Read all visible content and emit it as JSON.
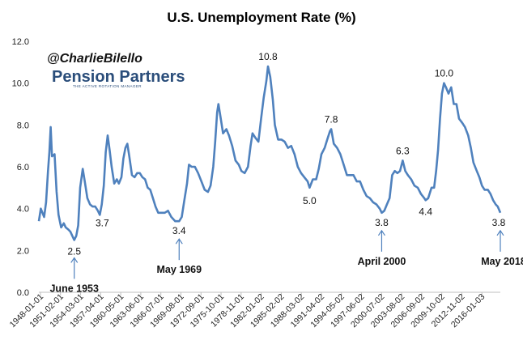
{
  "chart_data": {
    "type": "line",
    "title": "U.S. Unemployment Rate (%)",
    "xlabel": "",
    "ylabel": "",
    "ylim": [
      0,
      12
    ],
    "yticks": [
      "0.0",
      "2.0",
      "4.0",
      "6.0",
      "8.0",
      "10.0",
      "12.0"
    ],
    "x_start": 1948.0,
    "x_end": 2018.4,
    "xtick_labels": [
      "1948-01-01",
      "1951-02-01",
      "1954-03-01",
      "1957-04-01",
      "1960-05-01",
      "1963-06-01",
      "1966-07-01",
      "1969-08-01",
      "1972-09-01",
      "1975-10-01",
      "1978-11-01",
      "1982-01-02",
      "1985-02-02",
      "1988-03-02",
      "1991-04-02",
      "1994-05-02",
      "1997-06-02",
      "2000-07-02",
      "2003-08-02",
      "2006-09-02",
      "2009-10-02",
      "2012-11-02",
      "2016-01-03"
    ],
    "series": [
      {
        "name": "U.S. Unemployment Rate",
        "color": "#4f81bd",
        "points": [
          [
            1948.0,
            3.4
          ],
          [
            1948.3,
            4.0
          ],
          [
            1948.8,
            3.6
          ],
          [
            1949.1,
            4.3
          ],
          [
            1949.4,
            5.8
          ],
          [
            1949.6,
            6.7
          ],
          [
            1949.8,
            7.9
          ],
          [
            1950.0,
            6.5
          ],
          [
            1950.4,
            6.6
          ],
          [
            1950.7,
            4.8
          ],
          [
            1951.0,
            3.7
          ],
          [
            1951.4,
            3.1
          ],
          [
            1951.8,
            3.3
          ],
          [
            1952.1,
            3.1
          ],
          [
            1952.5,
            3.0
          ],
          [
            1952.8,
            2.9
          ],
          [
            1953.1,
            2.7
          ],
          [
            1953.4,
            2.5
          ],
          [
            1953.7,
            2.7
          ],
          [
            1954.0,
            3.2
          ],
          [
            1954.3,
            5.0
          ],
          [
            1954.7,
            5.9
          ],
          [
            1955.0,
            5.3
          ],
          [
            1955.4,
            4.5
          ],
          [
            1955.8,
            4.2
          ],
          [
            1956.2,
            4.1
          ],
          [
            1956.6,
            4.1
          ],
          [
            1957.0,
            3.9
          ],
          [
            1957.3,
            3.7
          ],
          [
            1957.6,
            4.2
          ],
          [
            1957.9,
            5.1
          ],
          [
            1958.2,
            6.7
          ],
          [
            1958.5,
            7.5
          ],
          [
            1958.8,
            6.8
          ],
          [
            1959.1,
            6.0
          ],
          [
            1959.5,
            5.2
          ],
          [
            1959.9,
            5.4
          ],
          [
            1960.2,
            5.2
          ],
          [
            1960.6,
            5.5
          ],
          [
            1960.9,
            6.4
          ],
          [
            1961.2,
            6.9
          ],
          [
            1961.5,
            7.1
          ],
          [
            1961.8,
            6.5
          ],
          [
            1962.2,
            5.6
          ],
          [
            1962.6,
            5.5
          ],
          [
            1963.0,
            5.7
          ],
          [
            1963.4,
            5.7
          ],
          [
            1963.8,
            5.5
          ],
          [
            1964.2,
            5.4
          ],
          [
            1964.6,
            5.0
          ],
          [
            1965.0,
            4.9
          ],
          [
            1965.4,
            4.5
          ],
          [
            1965.8,
            4.1
          ],
          [
            1966.2,
            3.8
          ],
          [
            1966.7,
            3.8
          ],
          [
            1967.2,
            3.8
          ],
          [
            1967.7,
            3.9
          ],
          [
            1968.2,
            3.6
          ],
          [
            1968.8,
            3.4
          ],
          [
            1969.4,
            3.4
          ],
          [
            1969.8,
            3.6
          ],
          [
            1970.2,
            4.4
          ],
          [
            1970.6,
            5.2
          ],
          [
            1970.9,
            6.1
          ],
          [
            1971.3,
            6.0
          ],
          [
            1971.8,
            6.0
          ],
          [
            1972.3,
            5.7
          ],
          [
            1972.8,
            5.3
          ],
          [
            1973.3,
            4.9
          ],
          [
            1973.8,
            4.8
          ],
          [
            1974.2,
            5.1
          ],
          [
            1974.6,
            6.0
          ],
          [
            1974.9,
            7.2
          ],
          [
            1975.2,
            8.6
          ],
          [
            1975.4,
            9.0
          ],
          [
            1975.7,
            8.4
          ],
          [
            1976.1,
            7.6
          ],
          [
            1976.6,
            7.8
          ],
          [
            1977.0,
            7.5
          ],
          [
            1977.5,
            7.0
          ],
          [
            1978.0,
            6.3
          ],
          [
            1978.5,
            6.1
          ],
          [
            1978.9,
            5.8
          ],
          [
            1979.4,
            5.7
          ],
          [
            1979.9,
            6.0
          ],
          [
            1980.3,
            7.0
          ],
          [
            1980.6,
            7.6
          ],
          [
            1981.0,
            7.4
          ],
          [
            1981.5,
            7.2
          ],
          [
            1981.9,
            8.3
          ],
          [
            1982.3,
            9.3
          ],
          [
            1982.7,
            10.1
          ],
          [
            1982.95,
            10.8
          ],
          [
            1983.3,
            10.3
          ],
          [
            1983.7,
            9.2
          ],
          [
            1984.0,
            8.0
          ],
          [
            1984.5,
            7.3
          ],
          [
            1985.0,
            7.3
          ],
          [
            1985.5,
            7.2
          ],
          [
            1986.0,
            6.9
          ],
          [
            1986.5,
            7.0
          ],
          [
            1987.0,
            6.6
          ],
          [
            1987.5,
            6.0
          ],
          [
            1988.0,
            5.7
          ],
          [
            1988.5,
            5.5
          ],
          [
            1989.0,
            5.3
          ],
          [
            1989.3,
            5.0
          ],
          [
            1989.8,
            5.4
          ],
          [
            1990.3,
            5.4
          ],
          [
            1990.7,
            5.9
          ],
          [
            1991.1,
            6.6
          ],
          [
            1991.6,
            6.9
          ],
          [
            1992.0,
            7.3
          ],
          [
            1992.4,
            7.7
          ],
          [
            1992.6,
            7.8
          ],
          [
            1993.0,
            7.1
          ],
          [
            1993.5,
            6.9
          ],
          [
            1994.0,
            6.6
          ],
          [
            1994.5,
            6.1
          ],
          [
            1995.0,
            5.6
          ],
          [
            1995.5,
            5.6
          ],
          [
            1996.0,
            5.6
          ],
          [
            1996.5,
            5.3
          ],
          [
            1997.0,
            5.3
          ],
          [
            1997.5,
            4.9
          ],
          [
            1998.0,
            4.6
          ],
          [
            1998.5,
            4.5
          ],
          [
            1999.0,
            4.3
          ],
          [
            1999.5,
            4.2
          ],
          [
            2000.0,
            4.0
          ],
          [
            2000.3,
            3.8
          ],
          [
            2000.7,
            3.9
          ],
          [
            2001.1,
            4.2
          ],
          [
            2001.5,
            4.5
          ],
          [
            2001.9,
            5.6
          ],
          [
            2002.3,
            5.8
          ],
          [
            2002.7,
            5.7
          ],
          [
            2003.1,
            5.8
          ],
          [
            2003.5,
            6.3
          ],
          [
            2003.9,
            5.8
          ],
          [
            2004.3,
            5.6
          ],
          [
            2004.8,
            5.4
          ],
          [
            2005.3,
            5.1
          ],
          [
            2005.8,
            5.0
          ],
          [
            2006.3,
            4.7
          ],
          [
            2006.8,
            4.5
          ],
          [
            2007.0,
            4.4
          ],
          [
            2007.4,
            4.5
          ],
          [
            2007.9,
            5.0
          ],
          [
            2008.3,
            5.0
          ],
          [
            2008.6,
            5.8
          ],
          [
            2008.9,
            6.8
          ],
          [
            2009.2,
            8.3
          ],
          [
            2009.5,
            9.5
          ],
          [
            2009.8,
            10.0
          ],
          [
            2010.1,
            9.8
          ],
          [
            2010.5,
            9.5
          ],
          [
            2010.9,
            9.8
          ],
          [
            2011.3,
            9.0
          ],
          [
            2011.7,
            9.0
          ],
          [
            2012.1,
            8.3
          ],
          [
            2012.6,
            8.1
          ],
          [
            2013.0,
            7.9
          ],
          [
            2013.5,
            7.5
          ],
          [
            2013.9,
            6.9
          ],
          [
            2014.3,
            6.2
          ],
          [
            2014.8,
            5.8
          ],
          [
            2015.2,
            5.5
          ],
          [
            2015.6,
            5.1
          ],
          [
            2016.0,
            4.9
          ],
          [
            2016.5,
            4.9
          ],
          [
            2016.9,
            4.7
          ],
          [
            2017.3,
            4.4
          ],
          [
            2017.7,
            4.2
          ],
          [
            2018.0,
            4.1
          ],
          [
            2018.4,
            3.8
          ]
        ]
      }
    ],
    "data_labels": [
      {
        "x": 1953.4,
        "y": 2.5,
        "text": "2.5"
      },
      {
        "x": 1957.3,
        "y": 3.7,
        "text": "3.7"
      },
      {
        "x": 1969.4,
        "y": 3.4,
        "text": "3.4"
      },
      {
        "x": 1982.95,
        "y": 10.8,
        "text": "10.8"
      },
      {
        "x": 1989.3,
        "y": 5.0,
        "text": "5.0"
      },
      {
        "x": 1992.6,
        "y": 7.8,
        "text": "7.8"
      },
      {
        "x": 2000.3,
        "y": 3.8,
        "text": "3.8"
      },
      {
        "x": 2003.5,
        "y": 6.3,
        "text": "6.3"
      },
      {
        "x": 2007.0,
        "y": 4.4,
        "text": "4.4"
      },
      {
        "x": 2009.8,
        "y": 10.0,
        "text": "10.0"
      },
      {
        "x": 2018.4,
        "y": 3.8,
        "text": "3.8"
      }
    ],
    "annotations": [
      {
        "text": "June 1953",
        "x": 1953.4,
        "y": 2.5
      },
      {
        "text": "May 1969",
        "x": 1969.4,
        "y": 3.4
      },
      {
        "text": "April 2000",
        "x": 2000.3,
        "y": 3.8
      },
      {
        "text": "May 2018",
        "x": 2018.4,
        "y": 3.8
      }
    ],
    "grid": false,
    "legend": "none"
  },
  "branding": {
    "handle": "@CharlieBilello",
    "logo_text": "Pension Partners",
    "logo_tagline": "THE ACTIVE ROTATION MANAGER"
  }
}
